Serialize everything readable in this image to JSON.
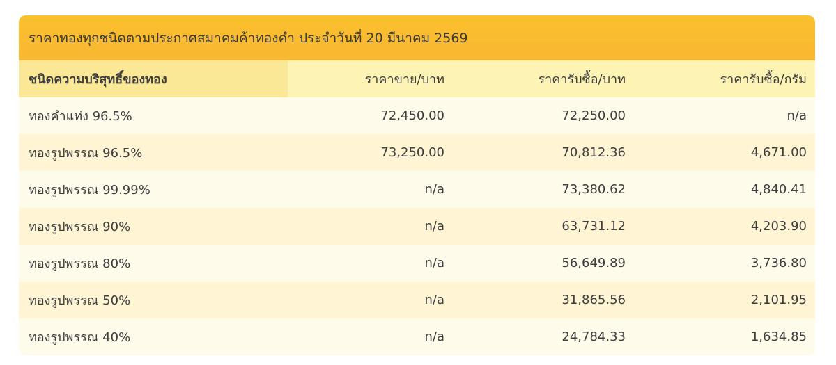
{
  "title": "ราคาทองทุกชนิดตามประกาศสมาคมค้าทองคำ ประจำวันที่ 20 มีนาคม 2569",
  "headers": [
    "ชนิดความบริสุทธิ์ของทอง",
    "ราคาขาย/บาท",
    "ราคารับซื้อ/บาท",
    "ราคารับซื้อ/กรัม"
  ],
  "rows": [
    [
      "ทองคำแท่ง 96.5%",
      "72,450.00",
      "72,250.00",
      "n/a"
    ],
    [
      "ทองรูปพรรณ 96.5%",
      "73,250.00",
      "70,812.36",
      "4,671.00"
    ],
    [
      "ทองรูปพรรณ 99.99%",
      "n/a",
      "73,380.62",
      "4,840.41"
    ],
    [
      "ทองรูปพรรณ 90%",
      "n/a",
      "63,731.12",
      "4,203.90"
    ],
    [
      "ทองรูปพรรณ 80%",
      "n/a",
      "56,649.89",
      "3,736.80"
    ],
    [
      "ทองรูปพรรณ 50%",
      "n/a",
      "31,865.56",
      "2,101.95"
    ],
    [
      "ทองรูปพรรณ 40%",
      "n/a",
      "24,784.33",
      "1,634.85"
    ]
  ],
  "colors": {
    "title_bg": "#fbc02d",
    "header_bg": "#fdf3b4",
    "header_first_bg": "#fae896",
    "row_odd": "#fffbea",
    "row_even": "#fff5d4"
  }
}
